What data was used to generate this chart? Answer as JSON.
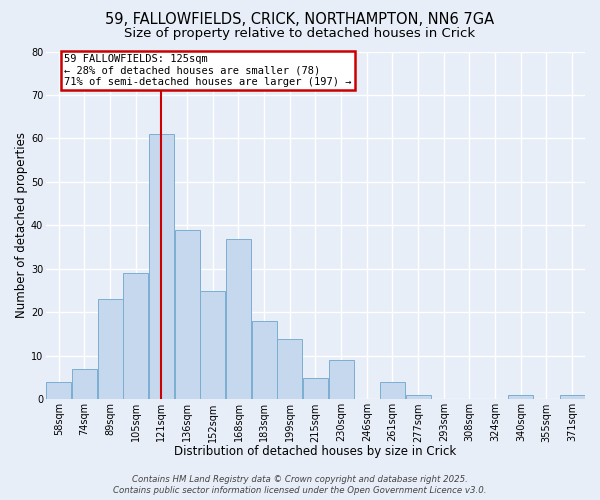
{
  "title_line1": "59, FALLOWFIELDS, CRICK, NORTHAMPTON, NN6 7GA",
  "title_line2": "Size of property relative to detached houses in Crick",
  "xlabel": "Distribution of detached houses by size in Crick",
  "ylabel": "Number of detached properties",
  "footer_line1": "Contains HM Land Registry data © Crown copyright and database right 2025.",
  "footer_line2": "Contains public sector information licensed under the Open Government Licence v3.0.",
  "bin_labels": [
    "58sqm",
    "74sqm",
    "89sqm",
    "105sqm",
    "121sqm",
    "136sqm",
    "152sqm",
    "168sqm",
    "183sqm",
    "199sqm",
    "215sqm",
    "230sqm",
    "246sqm",
    "261sqm",
    "277sqm",
    "293sqm",
    "308sqm",
    "324sqm",
    "340sqm",
    "355sqm",
    "371sqm"
  ],
  "bar_values": [
    4,
    7,
    23,
    29,
    61,
    39,
    25,
    37,
    18,
    14,
    5,
    9,
    0,
    4,
    1,
    0,
    0,
    0,
    1,
    0,
    1
  ],
  "bar_color": "#c5d8ed",
  "bar_edge_color": "#7aaed0",
  "annotation_box_text": "59 FALLOWFIELDS: 125sqm\n← 28% of detached houses are smaller (78)\n71% of semi-detached houses are larger (197) →",
  "annotation_box_color": "#ffffff",
  "annotation_box_edge_color": "#cc0000",
  "vline_x_index": 4,
  "vline_color": "#cc0000",
  "ylim": [
    0,
    80
  ],
  "yticks": [
    0,
    10,
    20,
    30,
    40,
    50,
    60,
    70,
    80
  ],
  "background_color": "#e8eef8",
  "grid_color": "#ffffff",
  "title_fontsize": 10.5,
  "subtitle_fontsize": 9.5,
  "axis_label_fontsize": 8.5,
  "tick_fontsize": 7
}
